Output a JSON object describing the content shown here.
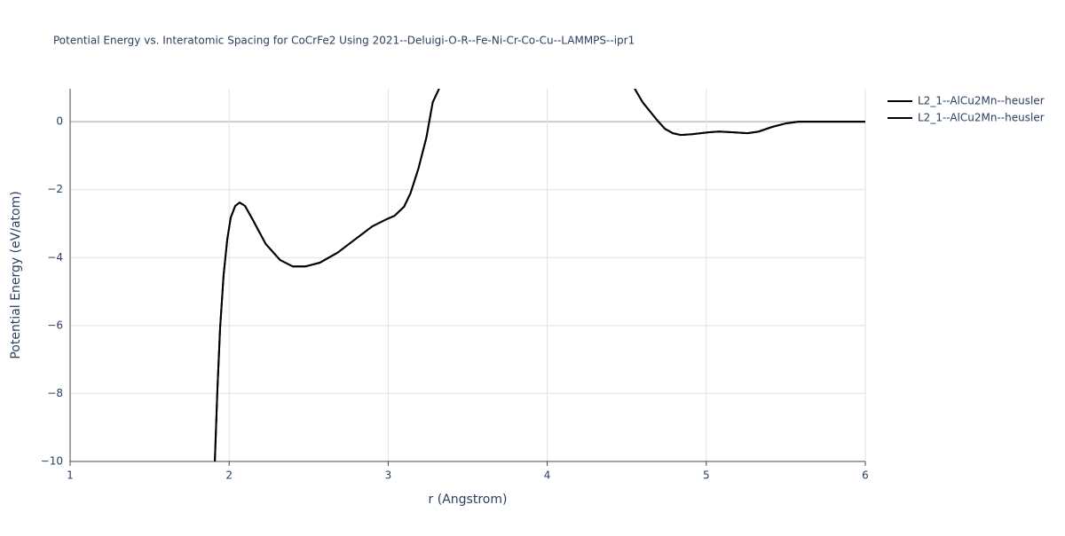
{
  "chart_data": {
    "type": "line",
    "title": "Potential Energy vs. Interatomic Spacing for CoCrFe2 Using 2021--Deluigi-O-R--Fe-Ni-Cr-Co-Cu--LAMMPS--ipr1",
    "x_label": "r (Angstrom)",
    "y_label": "Potential Energy (eV/atom)",
    "x": [
      1.91,
      1.926,
      1.943,
      1.965,
      1.988,
      2.01,
      2.038,
      2.066,
      2.1,
      2.15,
      2.23,
      2.32,
      2.4,
      2.48,
      2.57,
      2.68,
      2.79,
      2.9,
      2.99,
      3.04,
      3.1,
      3.14,
      3.19,
      3.24,
      3.28,
      3.32,
      4.0,
      4.55,
      4.6,
      4.69,
      4.74,
      4.79,
      4.84,
      4.91,
      5.02,
      5.08,
      5.16,
      5.26,
      5.33,
      5.41,
      5.5,
      5.58,
      6.0
    ],
    "series": [
      {
        "name": "L2_1--AlCu2Mn--heusler",
        "color": "#000000",
        "values": [
          -10,
          -7.9,
          -6.08,
          -4.52,
          -3.47,
          -2.82,
          -2.48,
          -2.38,
          -2.48,
          -2.9,
          -3.6,
          -4.07,
          -4.26,
          -4.26,
          -4.15,
          -3.86,
          -3.47,
          -3.08,
          -2.87,
          -2.77,
          -2.5,
          -2.11,
          -1.38,
          -0.47,
          0.57,
          0.97,
          null,
          0.97,
          0.57,
          0.05,
          -0.21,
          -0.34,
          -0.39,
          -0.37,
          -0.31,
          -0.29,
          -0.31,
          -0.34,
          -0.29,
          -0.16,
          -0.05,
          0,
          0
        ]
      },
      {
        "name": "L2_1--AlCu2Mn--heusler",
        "color": "#000000",
        "values": [
          -10,
          -7.9,
          -6.08,
          -4.52,
          -3.47,
          -2.82,
          -2.48,
          -2.38,
          -2.48,
          -2.9,
          -3.6,
          -4.07,
          -4.26,
          -4.26,
          -4.15,
          -3.86,
          -3.47,
          -3.08,
          -2.87,
          -2.77,
          -2.5,
          -2.11,
          -1.38,
          -0.47,
          0.57,
          0.97,
          null,
          0.97,
          0.57,
          0.05,
          -0.21,
          -0.34,
          -0.39,
          -0.37,
          -0.31,
          -0.29,
          -0.31,
          -0.34,
          -0.29,
          -0.16,
          -0.05,
          0,
          0
        ]
      }
    ],
    "xlim": [
      1,
      6
    ],
    "ylim": [
      -10,
      0.97
    ],
    "xticks": [
      1,
      2,
      3,
      4,
      5,
      6
    ],
    "yticks": [
      {
        "value": 0,
        "label": "0"
      },
      {
        "value": -2,
        "label": "−2"
      },
      {
        "value": -4,
        "label": "−4"
      },
      {
        "value": -6,
        "label": "−6"
      },
      {
        "value": -8,
        "label": "−8"
      },
      {
        "value": -10,
        "label": "−10"
      }
    ],
    "grid": true
  }
}
